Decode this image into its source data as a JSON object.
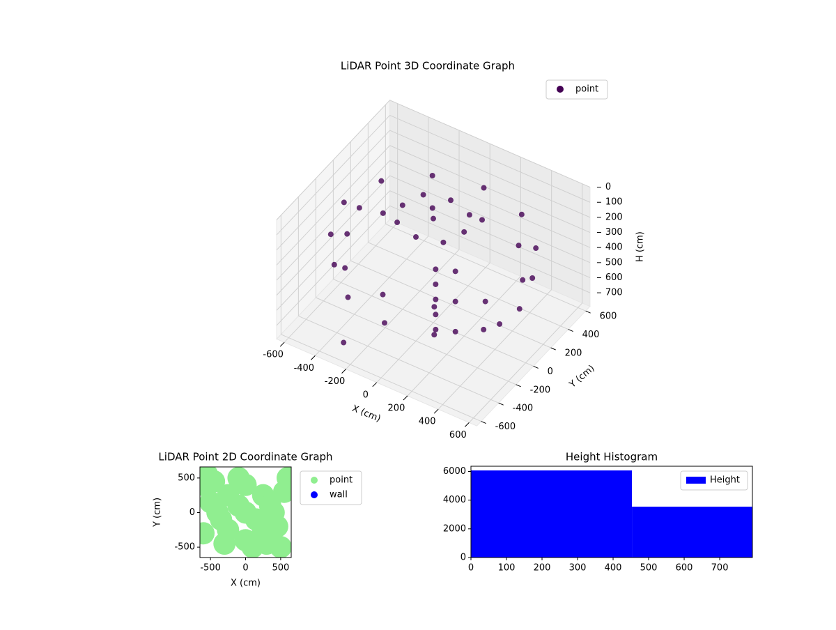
{
  "chart_data": [
    {
      "type": "scatter3d",
      "title": "LiDAR Point 3D Coordinate Graph",
      "xlabel": "X (cm)",
      "ylabel": "Y (cm)",
      "zlabel": "H (cm)",
      "xlim": [
        -650,
        650
      ],
      "ylim": [
        -650,
        650
      ],
      "zlim": [
        790,
        0
      ],
      "xticks": [
        -600,
        -400,
        -200,
        0,
        200,
        400,
        600
      ],
      "yticks": [
        -600,
        -400,
        -200,
        0,
        200,
        400,
        600
      ],
      "zticks": [
        0,
        100,
        200,
        300,
        400,
        500,
        600,
        700
      ],
      "grid": true,
      "legend": "upper right",
      "series": [
        {
          "name": "point",
          "color": "#440154",
          "x": [
            580,
            502,
            290,
            0,
            -290,
            -502,
            -580,
            -502,
            -290,
            0,
            290,
            502,
            560,
            485,
            280,
            0,
            -280,
            -485,
            -560,
            -485,
            -280,
            0,
            280,
            485,
            0,
            200,
            0,
            -200,
            0,
            150,
            -150,
            150,
            -150,
            100,
            100,
            100,
            100,
            100,
            200,
            200,
            200,
            -650,
            600,
            -300
          ],
          "y": [
            0,
            290,
            502,
            580,
            502,
            290,
            0,
            -290,
            -502,
            -580,
            -502,
            -290,
            0,
            280,
            485,
            560,
            485,
            280,
            0,
            -280,
            -485,
            -560,
            -485,
            -280,
            0,
            0,
            200,
            0,
            -200,
            150,
            150,
            -150,
            -150,
            -150,
            -150,
            -150,
            -150,
            -150,
            -100,
            -100,
            -100,
            300,
            -300,
            -500
          ],
          "z": [
            250,
            250,
            250,
            250,
            250,
            250,
            250,
            250,
            250,
            250,
            250,
            250,
            450,
            450,
            450,
            450,
            450,
            450,
            450,
            450,
            450,
            450,
            450,
            450,
            100,
            100,
            100,
            100,
            100,
            100,
            100,
            100,
            100,
            300,
            400,
            500,
            600,
            700,
            300,
            500,
            700,
            500,
            350,
            750
          ]
        }
      ]
    },
    {
      "type": "scatter",
      "title": "LiDAR Point 2D Coordinate Graph",
      "xlabel": "X (cm)",
      "ylabel": "Y (cm)",
      "xlim": [
        -650,
        650
      ],
      "ylim": [
        -650,
        660
      ],
      "xticks": [
        -500,
        0,
        500
      ],
      "yticks": [
        -500,
        0,
        500
      ],
      "legend": "outside right",
      "series": [
        {
          "name": "point",
          "color": "#90ee90",
          "x": [
            0,
            -250,
            250,
            -250,
            250,
            0,
            0,
            -400,
            400,
            -450,
            -600,
            -600,
            -550,
            500,
            550,
            600,
            -300,
            300,
            -100,
            100,
            -500,
            450,
            -100,
            150,
            350,
            -350
          ],
          "y": [
            0,
            250,
            250,
            -250,
            -250,
            400,
            -400,
            0,
            0,
            450,
            400,
            -300,
            550,
            -500,
            300,
            500,
            -450,
            -450,
            500,
            -500,
            150,
            -200,
            100,
            -100,
            100,
            -100
          ]
        },
        {
          "name": "wall",
          "color": "#0000ff",
          "x": [],
          "y": []
        }
      ]
    },
    {
      "type": "histogram",
      "title": "Height Histogram",
      "bins": [
        0,
        453,
        792
      ],
      "values": [
        6070,
        3545
      ],
      "xlim": [
        0,
        792
      ],
      "ylim": [
        0,
        6364
      ],
      "xticks": [
        0,
        100,
        200,
        300,
        400,
        500,
        600,
        700
      ],
      "yticks": [
        0,
        2000,
        4000,
        6000
      ],
      "legend": "upper right",
      "series_name": "Height",
      "color": "#0000ff"
    }
  ]
}
